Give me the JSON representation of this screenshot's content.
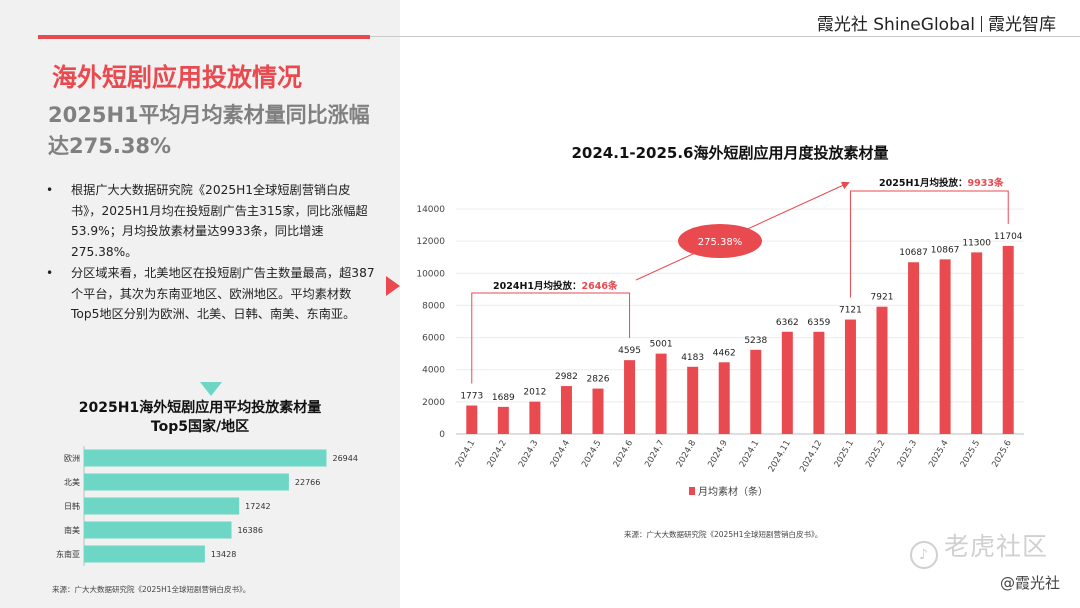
{
  "header": {
    "brand_left": "霞光社 ShineGlobal",
    "brand_right": "霞光智库"
  },
  "section_title": "海外短剧应用投放情况",
  "subtitle": "2025H1平均月均素材量同比涨幅达275.38%",
  "bullets": [
    "根据广大大数据研究院《2025H1全球短剧营销白皮书》，2025H1月均在投短剧广告主315家，同比涨幅超53.9%；月均投放素材量达9933条，同比增速275.38%。",
    "分区域来看，北美地区在投短剧广告主数量最高，超387个平台，其次为东南亚地区、欧洲地区。平均素材数Top5地区分别为欧洲、北美、日韩、南美、东南亚。"
  ],
  "bullet_symbol": "•",
  "small_chart": {
    "title_line1": "2025H1海外短剧应用平均投放素材量",
    "title_line2": "Top5国家/地区",
    "source": "来源：广大大数据研究院《2025H1全球短剧营销白皮书》。"
  },
  "main_chart": {
    "title": "2024.1-2025.6海外短剧应用月度投放素材量",
    "source": "来源：广大大数据研究院《2025H1全球短剧营销白皮书》。"
  },
  "watermark": "老虎社区",
  "handle": "@霞光社",
  "colors": {
    "accent_red": "#e84a4f",
    "teal": "#6ed6c4",
    "panel_gray": "#f1f1f1"
  },
  "chart_data": [
    {
      "type": "bar",
      "orientation": "horizontal",
      "title": "2025H1海外短剧应用平均投放素材量 Top5国家/地区",
      "categories": [
        "欧洲",
        "北美",
        "日韩",
        "南美",
        "东南亚"
      ],
      "values": [
        26944,
        22766,
        17242,
        16386,
        13428
      ],
      "xlim": [
        0,
        28000
      ],
      "grid": false,
      "legend": "none",
      "color": "#6ed6c4"
    },
    {
      "type": "bar",
      "title": "2024.1-2025.6海外短剧应用月度投放素材量",
      "categories": [
        "2024.1",
        "2024.2",
        "2024.3",
        "2024.4",
        "2024.5",
        "2024.6",
        "2024.7",
        "2024.8",
        "2024.9",
        "2024.1",
        "2024.11",
        "2024.12",
        "2025.1",
        "2025.2",
        "2025.3",
        "2025.4",
        "2025.5",
        "2025.6"
      ],
      "series": [
        {
          "name": "月均素材（条）",
          "values": [
            1773,
            1689,
            2012,
            2982,
            2826,
            4595,
            5001,
            4183,
            4462,
            5238,
            6362,
            6359,
            7121,
            7921,
            10687,
            10867,
            11300,
            11704
          ]
        }
      ],
      "ylim": [
        0,
        14000
      ],
      "yticks": [
        0,
        2000,
        4000,
        6000,
        8000,
        10000,
        12000,
        14000
      ],
      "grid": true,
      "legend": "bottom",
      "color": "#e84a4f",
      "annotations": {
        "h1_2024_label": "2024H1月均投放：",
        "h1_2024_value": "2646条",
        "h1_2025_label": "2025H1月均投放：",
        "h1_2025_value": "9933条",
        "growth": "275.38%"
      }
    }
  ]
}
